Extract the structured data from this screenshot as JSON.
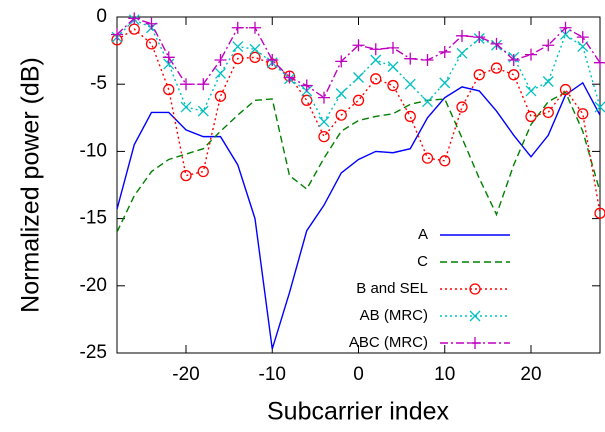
{
  "chart_data": {
    "type": "line",
    "xlabel": "Subcarrier index",
    "ylabel": "Normalized power (dB)",
    "x": [
      -28,
      -26,
      -24,
      -22,
      -20,
      -18,
      -16,
      -14,
      -12,
      -10,
      -8,
      -6,
      -4,
      -2,
      0,
      2,
      4,
      6,
      8,
      10,
      12,
      14,
      16,
      18,
      20,
      22,
      24,
      26,
      28
    ],
    "series": [
      {
        "name": "A",
        "color": "#0000ff",
        "style": "solid",
        "marker": "none",
        "values": [
          -14.3,
          -9.5,
          -7.1,
          -7.1,
          -8.4,
          -8.9,
          -8.9,
          -11,
          -15,
          -24.7,
          -20.5,
          -15.9,
          -14,
          -11.6,
          -10.6,
          -10,
          -10.1,
          -9.8,
          -7.5,
          -6,
          -5.2,
          -5.5,
          -7,
          -8.8,
          -10.4,
          -8.8,
          -5.8,
          -4.9,
          -7.3
        ]
      },
      {
        "name": "C",
        "color": "#008000",
        "style": "dashed",
        "marker": "none",
        "values": [
          -16,
          -13.3,
          -11.5,
          -10.6,
          -10.2,
          -9.8,
          -8.5,
          -7.3,
          -6.2,
          -6.1,
          -11.8,
          -12.8,
          -10.5,
          -8.5,
          -7.7,
          -7.4,
          -7.2,
          -6.5,
          -6.2,
          -6.1,
          -9,
          -12,
          -14.7,
          -11,
          -8,
          -6.3,
          -5.6,
          -8.5,
          -13
        ]
      },
      {
        "name": "B and SEL",
        "color": "#ff0000",
        "style": "dotted",
        "marker": "circle",
        "values": [
          -1.7,
          -0.9,
          -2,
          -5.4,
          -11.8,
          -11.5,
          -5.9,
          -3.1,
          -3,
          -3.5,
          -4.4,
          -6.2,
          -8.9,
          -7.3,
          -6.2,
          -4.6,
          -5.1,
          -7.4,
          -10.5,
          -10.7,
          -6.7,
          -4.3,
          -3.8,
          -4.3,
          -7.4,
          -7.1,
          -5.4,
          -7.2,
          -14.6
        ]
      },
      {
        "name": "AB (MRC)",
        "color": "#00c0c0",
        "style": "dotted",
        "marker": "cross",
        "values": [
          -1.5,
          -0.2,
          -0.8,
          -3.5,
          -6.7,
          -7,
          -4.2,
          -2.2,
          -2.4,
          -3.4,
          -4.6,
          -5.5,
          -7.8,
          -5.7,
          -4.5,
          -3.2,
          -3.7,
          -5,
          -6.3,
          -4.9,
          -2.7,
          -1.6,
          -2.1,
          -3,
          -5.5,
          -4.8,
          -1.3,
          -2.2,
          -6.7
        ]
      },
      {
        "name": "ABC (MRC)",
        "color": "#c000c0",
        "style": "dashdot",
        "marker": "plus",
        "values": [
          -1.3,
          -0.1,
          -0.5,
          -3,
          -5,
          -5,
          -3.2,
          -0.8,
          -0.8,
          -3.2,
          -4.5,
          -5.1,
          -6,
          -3.3,
          -2.1,
          -2.4,
          -2.3,
          -3.1,
          -3.2,
          -2.6,
          -1.4,
          -1.5,
          -2,
          -3.2,
          -2.8,
          -2.1,
          -0.8,
          -1.5,
          -3.4
        ]
      }
    ],
    "xlim": [
      -28,
      28
    ],
    "ylim": [
      -25,
      0
    ],
    "xticks": [
      -20,
      -10,
      0,
      10,
      20
    ],
    "yticks": [
      -25,
      -20,
      -15,
      -10,
      -5,
      0
    ],
    "legend": "lower right"
  }
}
